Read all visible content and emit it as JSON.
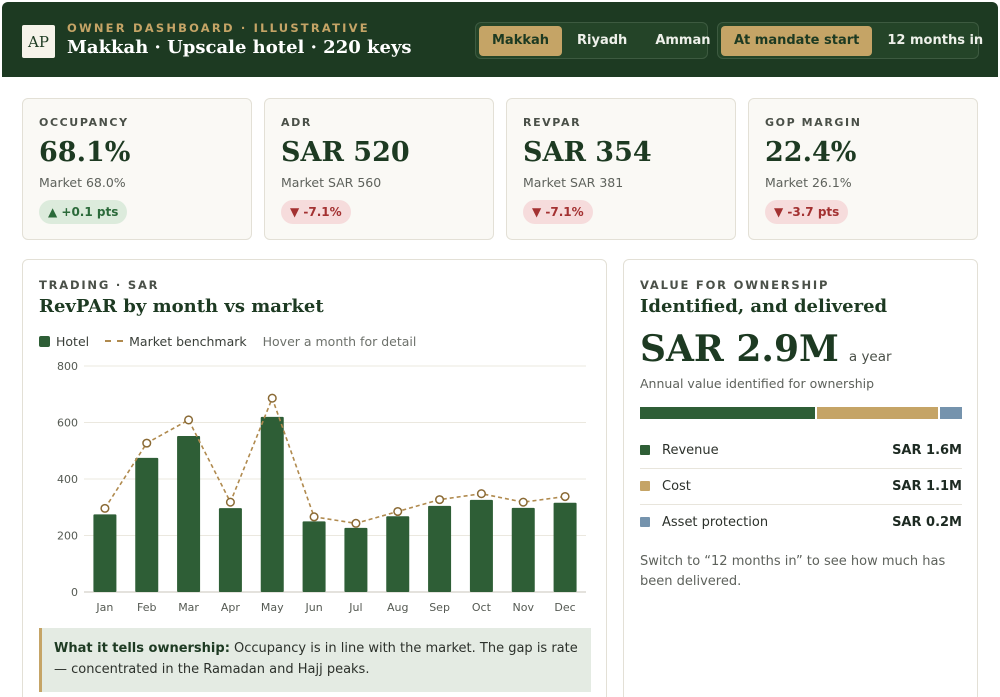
{
  "header": {
    "logo_text": "AP",
    "eyebrow": "OWNER DASHBOARD · ILLUSTRATIVE",
    "title": "Makkah · Upscale hotel · 220 keys",
    "cities": [
      {
        "label": "Makkah",
        "active": true
      },
      {
        "label": "Riyadh",
        "active": false
      },
      {
        "label": "Amman",
        "active": false
      }
    ],
    "periods": [
      {
        "label": "At mandate start",
        "active": true
      },
      {
        "label": "12 months in",
        "active": false
      }
    ]
  },
  "kpis": [
    {
      "label": "OCCUPANCY",
      "value": "68.1%",
      "market": "Market 68.0%",
      "delta": "▲ +0.1 pts",
      "trend": "up"
    },
    {
      "label": "ADR",
      "value": "SAR 520",
      "market": "Market SAR 560",
      "delta": "▼ -7.1%",
      "trend": "down"
    },
    {
      "label": "REVPAR",
      "value": "SAR 354",
      "market": "Market SAR 381",
      "delta": "▼ -7.1%",
      "trend": "down"
    },
    {
      "label": "GOP MARGIN",
      "value": "22.4%",
      "market": "Market 26.1%",
      "delta": "▼ -3.7 pts",
      "trend": "down"
    }
  ],
  "trading": {
    "eyebrow": "TRADING · SAR",
    "title": "RevPAR by month vs market",
    "legend_hotel": "Hotel",
    "legend_market": "Market benchmark",
    "hint": "Hover a month for detail",
    "note_bold": "What it tells ownership:",
    "note_text": "Occupancy is in line with the market. The gap is rate — concentrated in the Ramadan and Hajj peaks."
  },
  "chart_data": {
    "type": "bar",
    "categories": [
      "Jan",
      "Feb",
      "Mar",
      "Apr",
      "May",
      "Jun",
      "Jul",
      "Aug",
      "Sep",
      "Oct",
      "Nov",
      "Dec"
    ],
    "series": [
      {
        "name": "Hotel",
        "type": "bar",
        "color": "#2e5e36",
        "values": [
          275,
          475,
          552,
          297,
          620,
          250,
          227,
          268,
          305,
          326,
          298,
          316
        ]
      },
      {
        "name": "Market benchmark",
        "type": "line",
        "style": "dashed",
        "color": "#b08a4e",
        "values": [
          296,
          527,
          609,
          318,
          686,
          266,
          243,
          285,
          327,
          348,
          318,
          338
        ]
      }
    ],
    "yticks": [
      0,
      200,
      400,
      600,
      800
    ],
    "ylim": [
      0,
      800
    ],
    "grid": true
  },
  "value": {
    "eyebrow": "VALUE FOR OWNERSHIP",
    "title": "Identified, and delivered",
    "amount": "SAR 2.9M",
    "unit": "a year",
    "caption": "Annual value identified for ownership",
    "breakdown": [
      {
        "label": "Revenue",
        "amount": "SAR 1.6M",
        "share": 0.55,
        "color": "#2e5e36"
      },
      {
        "label": "Cost",
        "amount": "SAR 1.1M",
        "share": 0.38,
        "color": "#c5a466"
      },
      {
        "label": "Asset protection",
        "amount": "SAR 0.2M",
        "share": 0.07,
        "color": "#7593ad"
      }
    ],
    "switch_note": "Switch to “12 months in” to see how much has been delivered."
  }
}
